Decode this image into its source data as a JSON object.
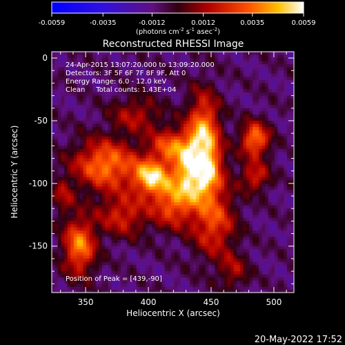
{
  "colorbar": {
    "ticks": [
      "-0.0059",
      "-0.0035",
      "-0.0012",
      "0.0012",
      "0.0035",
      "0.0059"
    ],
    "units_label": "(photons cm",
    "units_exp1": "-2",
    "units_mid1": " s",
    "units_exp2": "-1",
    "units_mid2": " asec",
    "units_exp3": "-2",
    "units_end": ")"
  },
  "plot": {
    "title": "Reconstructed RHESSI Image",
    "annotations": [
      "24-Apr-2015 13:07:20.000 to 13:09:20.000",
      "Detectors: 3F 5F 6F 7F 8F 9F, Att 0",
      "Energy Range: 6.0 - 12.0 keV",
      "Clean     Total counts: 1.43E+04"
    ],
    "peak_label": "Position of Peak = [439,-90]"
  },
  "footer": {
    "date": "20-May-2022 17:52"
  },
  "chart_data": {
    "type": "heatmap",
    "title": "Reconstructed RHESSI Image",
    "xlabel": "Heliocentric X (arcsec)",
    "ylabel": "Heliocentric Y (arcsec)",
    "xlim": [
      323,
      516
    ],
    "ylim": [
      -187,
      5
    ],
    "xticks": [
      350,
      400,
      450,
      500
    ],
    "yticks": [
      0,
      -50,
      -100,
      -150
    ],
    "colorbar_range": [
      -0.0059,
      0.0059
    ],
    "colormap": "blue-purple-red-yellow-white",
    "peak": {
      "x": 439,
      "y": -90
    },
    "sources": [
      {
        "x": 439,
        "y": -90,
        "amp": 1.0,
        "sx": 12,
        "sy": 15
      },
      {
        "x": 444,
        "y": -60,
        "amp": 0.75,
        "sx": 9,
        "sy": 22
      },
      {
        "x": 402,
        "y": -95,
        "amp": 0.8,
        "sx": 10,
        "sy": 10
      },
      {
        "x": 366,
        "y": -85,
        "amp": 0.7,
        "sx": 18,
        "sy": 14
      },
      {
        "x": 418,
        "y": -70,
        "amp": 0.55,
        "sx": 12,
        "sy": 10
      },
      {
        "x": 420,
        "y": -115,
        "amp": 0.6,
        "sx": 12,
        "sy": 14
      },
      {
        "x": 452,
        "y": -130,
        "amp": 0.55,
        "sx": 12,
        "sy": 20
      },
      {
        "x": 485,
        "y": -65,
        "amp": 0.7,
        "sx": 8,
        "sy": 10
      },
      {
        "x": 485,
        "y": -95,
        "amp": 0.45,
        "sx": 8,
        "sy": 8
      },
      {
        "x": 345,
        "y": -150,
        "amp": 0.7,
        "sx": 9,
        "sy": 16
      },
      {
        "x": 380,
        "y": -125,
        "amp": 0.45,
        "sx": 14,
        "sy": 12
      },
      {
        "x": 390,
        "y": -45,
        "amp": 0.35,
        "sx": 14,
        "sy": 10
      },
      {
        "x": 332,
        "y": -110,
        "amp": 0.3,
        "sx": 6,
        "sy": 10
      },
      {
        "x": 468,
        "y": -170,
        "amp": 0.3,
        "sx": 8,
        "sy": 10
      }
    ]
  }
}
